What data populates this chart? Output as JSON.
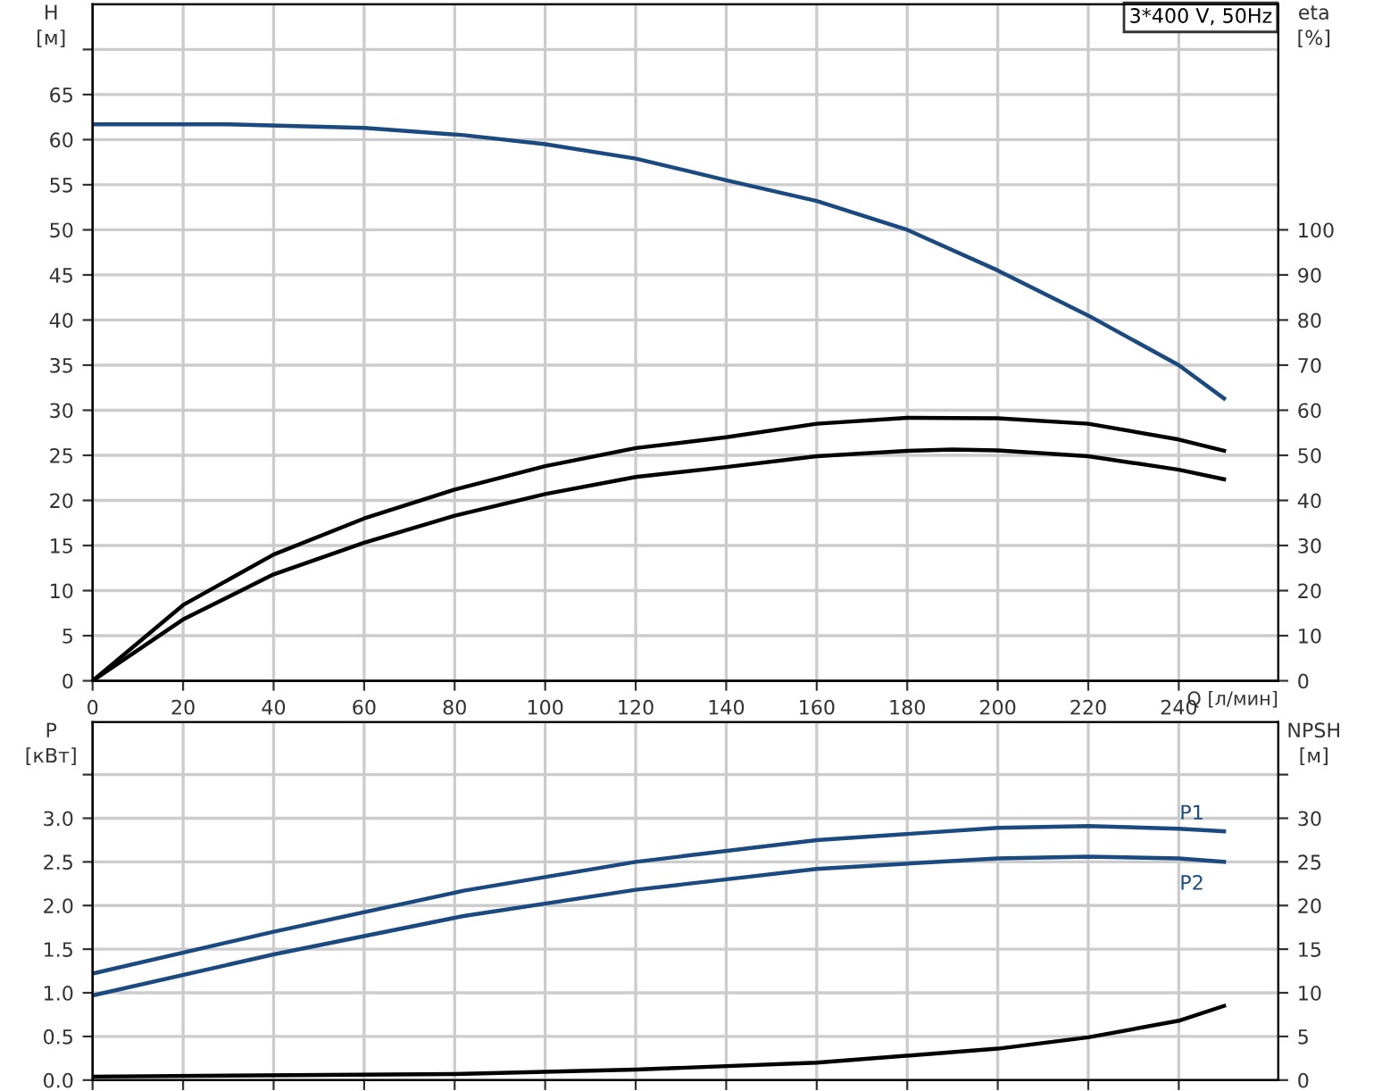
{
  "chart_data": [
    {
      "type": "line",
      "xlabel": "Q [л/мин]",
      "ylabel": "H\n[м]",
      "y2label": "eta\n[%]",
      "annotations": [
        "3*400 V, 50Hz"
      ],
      "xlim": [
        0,
        262
      ],
      "xticks": [
        0,
        20,
        40,
        60,
        80,
        100,
        120,
        140,
        160,
        180,
        200,
        220,
        240
      ],
      "ylim": [
        0,
        75
      ],
      "yticks": [
        0,
        5,
        10,
        15,
        20,
        25,
        30,
        35,
        40,
        45,
        50,
        55,
        60,
        65,
        {
          "value": 70,
          "label": null
        }
      ],
      "y2lim": [
        0,
        150
      ],
      "y2ticks": [
        0,
        10,
        20,
        30,
        40,
        50,
        60,
        70,
        80,
        90,
        100
      ],
      "grid": true,
      "legend": false,
      "series": [
        {
          "color": "#1a4a80",
          "x": [
            0,
            30,
            60,
            82,
            100,
            120,
            140,
            160,
            180,
            200,
            220,
            240,
            250
          ],
          "values": [
            61.7,
            61.7,
            61.3,
            60.5,
            59.5,
            57.9,
            55.5,
            53.2,
            50.0,
            45.5,
            40.5,
            35.0,
            31.3
          ]
        },
        {
          "color": "#000000",
          "axis": "y2",
          "x": [
            0,
            20,
            40,
            60,
            80,
            100,
            120,
            140,
            160,
            180,
            200,
            220,
            240,
            250
          ],
          "values": [
            0,
            16.8,
            28,
            36,
            42.4,
            47.6,
            51.6,
            54,
            57,
            58.3,
            58.2,
            57,
            53.5,
            51
          ]
        },
        {
          "color": "#000000",
          "axis": "y2",
          "x": [
            0,
            20,
            40,
            60,
            80,
            100,
            120,
            140,
            160,
            180,
            190,
            200,
            220,
            240,
            250
          ],
          "values": [
            0,
            13.6,
            23.6,
            30.6,
            36.6,
            41.4,
            45.2,
            47.4,
            49.8,
            51,
            51.3,
            51.1,
            49.8,
            46.8,
            44.7
          ]
        }
      ]
    },
    {
      "type": "line",
      "ylabel": "P\n[кВт]",
      "y2label": "NPSH\n[м]",
      "tick_labels": "y",
      "xlim": [
        0,
        262
      ],
      "xticks": [
        0,
        20,
        40,
        60,
        80,
        100,
        120,
        140,
        160,
        180,
        200,
        220,
        240
      ],
      "ylim": [
        0,
        4.1
      ],
      "yticks": [
        {
          "value": 0,
          "label": "0.0"
        },
        0.5,
        {
          "value": 1,
          "label": "1.0"
        },
        1.5,
        {
          "value": 2,
          "label": "2.0"
        },
        2.5,
        {
          "value": 3,
          "label": "3.0"
        },
        {
          "value": 3.5,
          "label": null
        }
      ],
      "y2lim": [
        0,
        41
      ],
      "y2ticks": [
        0,
        5,
        10,
        15,
        20,
        25,
        30,
        {
          "value": 35,
          "label": null
        }
      ],
      "grid": true,
      "legend": false,
      "series": [
        {
          "name": "P1",
          "color": "#1a4a80",
          "x": [
            0,
            40,
            82,
            120,
            160,
            200,
            220,
            240,
            250
          ],
          "values": [
            1.22,
            1.7,
            2.17,
            2.5,
            2.75,
            2.89,
            2.91,
            2.88,
            2.85
          ]
        },
        {
          "name": "P2",
          "color": "#1a4a80",
          "x": [
            0,
            40,
            82,
            120,
            160,
            200,
            220,
            240,
            250
          ],
          "values": [
            0.97,
            1.44,
            1.88,
            2.18,
            2.42,
            2.54,
            2.56,
            2.54,
            2.5
          ]
        },
        {
          "color": "#000000",
          "axis": "y2",
          "x": [
            0,
            80,
            120,
            160,
            200,
            220,
            240,
            250
          ],
          "values": [
            0.4,
            0.7,
            1.2,
            2.0,
            3.6,
            4.9,
            6.8,
            8.5
          ]
        }
      ]
    }
  ]
}
